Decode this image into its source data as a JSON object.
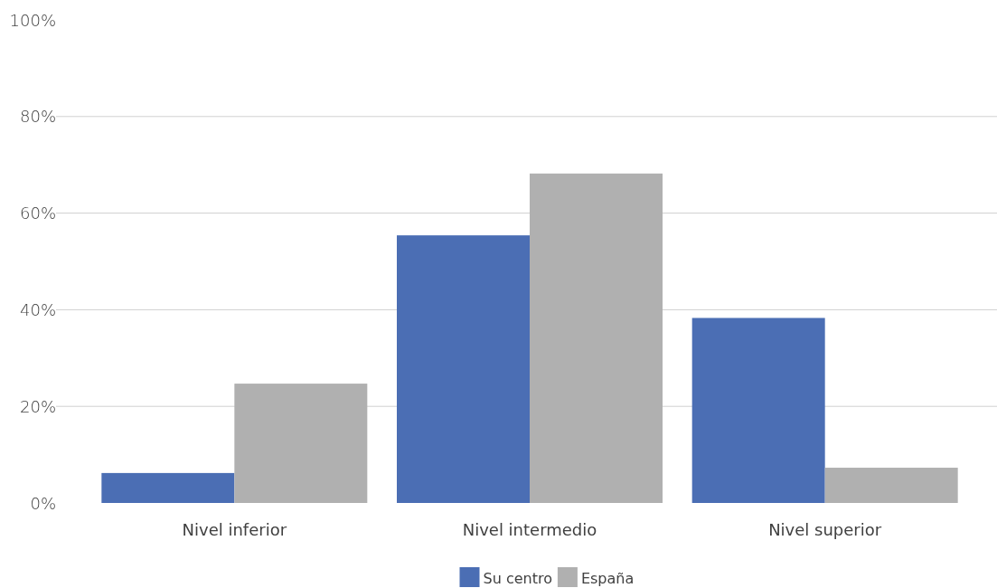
{
  "chart_data": {
    "type": "bar",
    "categories": [
      "Nivel inferior",
      "Nivel intermedio",
      "Nivel superior"
    ],
    "series": [
      {
        "name": "Su centro",
        "color": "#4b6eb4",
        "values": [
          6.2,
          55.4,
          38.3
        ]
      },
      {
        "name": "España",
        "color": "#b0b0b0",
        "values": [
          24.7,
          68.2,
          7.3
        ]
      }
    ],
    "ylim": [
      0,
      100
    ],
    "yticks": [
      {
        "value": 0,
        "label": "0%"
      },
      {
        "value": 20,
        "label": "20%"
      },
      {
        "value": 40,
        "label": "40%"
      },
      {
        "value": 60,
        "label": "60%"
      },
      {
        "value": 80,
        "label": "80%"
      },
      {
        "value": 100,
        "label": "100%"
      }
    ],
    "grid": "y",
    "legend": "bottom"
  }
}
